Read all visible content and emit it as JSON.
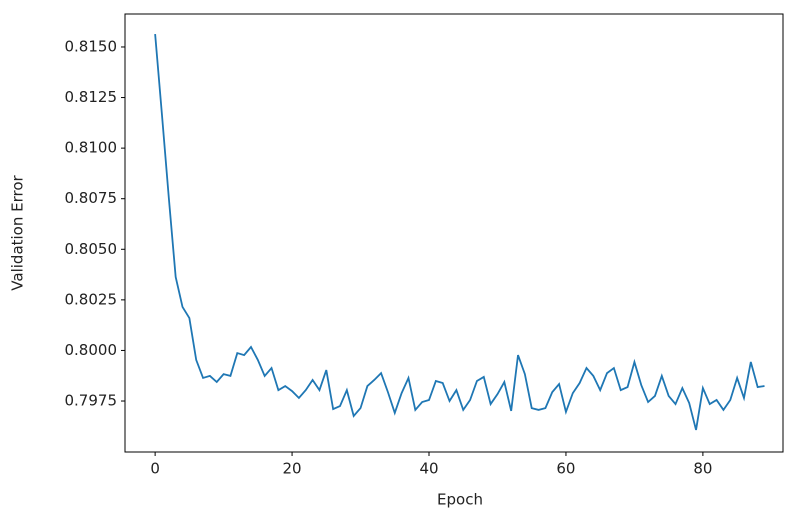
{
  "chart_data": {
    "type": "line",
    "xlabel": "Epoch",
    "ylabel": "Validation Error",
    "x": [
      0,
      1,
      2,
      3,
      4,
      5,
      6,
      7,
      8,
      9,
      10,
      11,
      12,
      13,
      14,
      15,
      16,
      17,
      18,
      19,
      20,
      21,
      22,
      23,
      24,
      25,
      26,
      27,
      28,
      29,
      30,
      31,
      32,
      33,
      34,
      35,
      36,
      37,
      38,
      39,
      40,
      41,
      42,
      43,
      44,
      45,
      46,
      47,
      48,
      49,
      50,
      51,
      52,
      53,
      54,
      55,
      56,
      57,
      58,
      59,
      60,
      61,
      62,
      63,
      64,
      65,
      66,
      67,
      68,
      69,
      70,
      71,
      72,
      73,
      74,
      75,
      76,
      77,
      78,
      79,
      80,
      81,
      82,
      83,
      84,
      85,
      86,
      87,
      88,
      89
    ],
    "series": [
      {
        "color": "#1f77b4",
        "values": [
          0.81564,
          0.81164,
          0.80754,
          0.80363,
          0.80215,
          0.8016,
          0.79953,
          0.79864,
          0.79874,
          0.79844,
          0.79883,
          0.79874,
          0.79987,
          0.79977,
          0.80017,
          0.79953,
          0.79874,
          0.79913,
          0.79804,
          0.79824,
          0.79799,
          0.79765,
          0.79804,
          0.79854,
          0.79804,
          0.79903,
          0.7971,
          0.79725,
          0.79804,
          0.79676,
          0.79715,
          0.79824,
          0.79854,
          0.79888,
          0.79794,
          0.79691,
          0.79789,
          0.79864,
          0.79706,
          0.79745,
          0.79755,
          0.79849,
          0.79839,
          0.7975,
          0.79804,
          0.79706,
          0.79755,
          0.79849,
          0.79869,
          0.79735,
          0.79784,
          0.79844,
          0.79701,
          0.79977,
          0.79883,
          0.79715,
          0.79706,
          0.79715,
          0.79794,
          0.79834,
          0.79696,
          0.79789,
          0.79839,
          0.79913,
          0.79874,
          0.79804,
          0.79888,
          0.79913,
          0.79804,
          0.79819,
          0.79943,
          0.79829,
          0.79745,
          0.79775,
          0.79874,
          0.79775,
          0.79735,
          0.79814,
          0.7974,
          0.79607,
          0.79814,
          0.79735,
          0.79755,
          0.79706,
          0.79755,
          0.79864,
          0.79765,
          0.79943,
          0.79819,
          0.79824
        ]
      }
    ],
    "xlim": [
      -4.4,
      91.7
    ],
    "xticks": [
      0,
      20,
      40,
      60,
      80
    ],
    "ylim": [
      0.79498,
      0.81663
    ],
    "yticks": [
      {
        "value": 0.7975,
        "label": "0.7975"
      },
      {
        "value": 0.8,
        "label": "0.8000"
      },
      {
        "value": 0.8025,
        "label": "0.8025"
      },
      {
        "value": 0.805,
        "label": "0.8050"
      },
      {
        "value": 0.8075,
        "label": "0.8075"
      },
      {
        "value": 0.81,
        "label": "0.8100"
      },
      {
        "value": 0.8125,
        "label": "0.8125"
      },
      {
        "value": 0.815,
        "label": "0.8150"
      }
    ],
    "grid": false
  }
}
